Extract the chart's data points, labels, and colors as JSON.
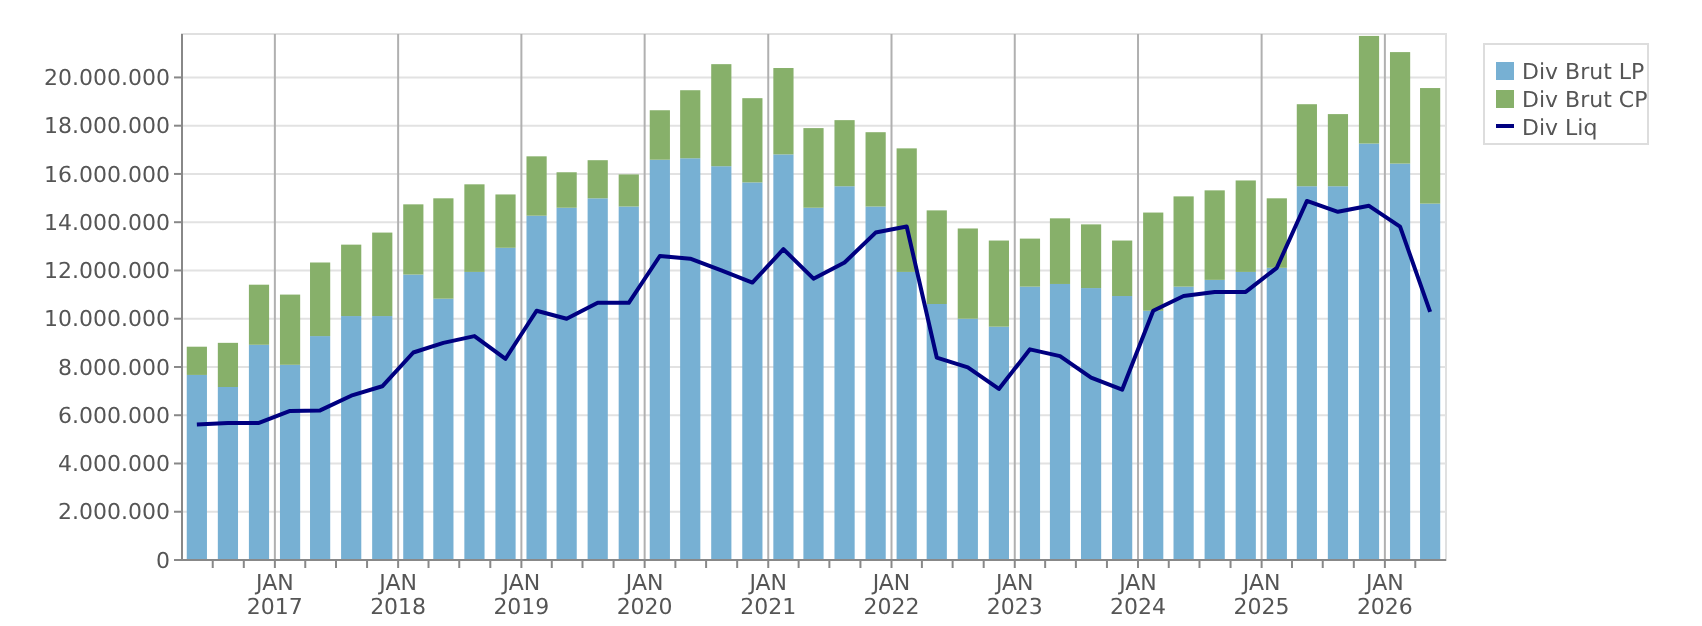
{
  "chart_data": {
    "type": "bar",
    "stacked": true,
    "x": [
      "2016-05-15",
      "2016-08-15",
      "2016-11-15",
      "2017-02-15",
      "2017-05-15",
      "2017-08-15",
      "2017-11-15",
      "2018-02-15",
      "2018-05-15",
      "2018-08-15",
      "2018-11-15",
      "2019-02-15",
      "2019-05-15",
      "2019-08-15",
      "2019-11-15",
      "2020-02-15",
      "2020-05-15",
      "2020-08-15",
      "2020-11-15",
      "2021-02-15",
      "2021-05-15",
      "2021-08-15",
      "2021-11-15",
      "2022-02-15",
      "2022-05-15",
      "2022-08-15",
      "2022-11-15",
      "2023-02-15",
      "2023-05-15",
      "2023-08-15",
      "2023-11-15",
      "2024-02-15",
      "2024-05-15",
      "2024-08-15",
      "2024-11-15",
      "2025-02-15",
      "2025-05-15",
      "2025-08-15",
      "2025-11-15",
      "2026-02-15",
      "2026-05-15"
    ],
    "series": [
      {
        "name": "Div Brut LP",
        "color": "#77b0d3",
        "values": [
          7670000,
          7170000,
          8920000,
          8090000,
          9280000,
          10110000,
          10110000,
          11830000,
          10830000,
          11940000,
          12940000,
          14270000,
          14600000,
          14990000,
          14650000,
          16590000,
          16650000,
          16320000,
          15650000,
          16810000,
          14600000,
          15490000,
          14650000,
          11940000,
          10610000,
          10000000,
          9670000,
          11330000,
          11440000,
          11270000,
          10940000,
          10330000,
          11330000,
          11610000,
          11940000,
          12110000,
          15490000,
          15490000,
          17260000,
          16430000,
          14770000
        ]
      },
      {
        "name": "Div Brut CP",
        "color": "#87b06a",
        "values": [
          1170000,
          1830000,
          2490000,
          2910000,
          3050000,
          2960000,
          3460000,
          2910000,
          4160000,
          3630000,
          2210000,
          2460000,
          1470000,
          1580000,
          1330000,
          2050000,
          2820000,
          4230000,
          3490000,
          3580000,
          3300000,
          2740000,
          3080000,
          5120000,
          3880000,
          3740000,
          3570000,
          1990000,
          2720000,
          2640000,
          2300000,
          4070000,
          3740000,
          3710000,
          3790000,
          2880000,
          3400000,
          2990000,
          4460000,
          4620000,
          4790000
        ]
      },
      {
        "name": "Div Liq",
        "type": "line",
        "color": "#000080",
        "values": [
          5620000,
          5680000,
          5680000,
          6180000,
          6200000,
          6810000,
          7200000,
          8600000,
          9000000,
          9280000,
          8340000,
          10330000,
          10000000,
          10660000,
          10660000,
          12600000,
          12490000,
          12000000,
          11500000,
          12880000,
          11660000,
          12330000,
          13570000,
          13820000,
          8390000,
          7980000,
          7090000,
          8730000,
          8450000,
          7560000,
          7060000,
          10330000,
          10940000,
          11110000,
          11110000,
          12110000,
          14880000,
          14430000,
          14680000,
          13820000,
          10280000
        ]
      }
    ],
    "xlim": [
      "2016-04-01",
      "2026-07-01"
    ],
    "xticks": [
      {
        "value": "2016-07-01",
        "label": null
      },
      {
        "value": "2016-10-01",
        "label": null
      },
      {
        "value": "2017-01-01",
        "label": "JAN 2017"
      },
      {
        "value": "2017-04-01",
        "label": null
      },
      {
        "value": "2017-07-01",
        "label": null
      },
      {
        "value": "2017-10-01",
        "label": null
      },
      {
        "value": "2018-01-01",
        "label": "JAN 2018"
      },
      {
        "value": "2018-04-01",
        "label": null
      },
      {
        "value": "2018-07-01",
        "label": null
      },
      {
        "value": "2018-10-01",
        "label": null
      },
      {
        "value": "2019-01-01",
        "label": "JAN 2019"
      },
      {
        "value": "2019-04-01",
        "label": null
      },
      {
        "value": "2019-07-01",
        "label": null
      },
      {
        "value": "2019-10-01",
        "label": null
      },
      {
        "value": "2020-01-01",
        "label": "JAN 2020"
      },
      {
        "value": "2020-04-01",
        "label": null
      },
      {
        "value": "2020-07-01",
        "label": null
      },
      {
        "value": "2020-10-01",
        "label": null
      },
      {
        "value": "2021-01-01",
        "label": "JAN 2021"
      },
      {
        "value": "2021-04-01",
        "label": null
      },
      {
        "value": "2021-07-01",
        "label": null
      },
      {
        "value": "2021-10-01",
        "label": null
      },
      {
        "value": "2022-01-01",
        "label": "JAN 2022"
      },
      {
        "value": "2022-04-01",
        "label": null
      },
      {
        "value": "2022-07-01",
        "label": null
      },
      {
        "value": "2022-10-01",
        "label": null
      },
      {
        "value": "2023-01-01",
        "label": "JAN 2023"
      },
      {
        "value": "2023-04-01",
        "label": null
      },
      {
        "value": "2023-07-01",
        "label": null
      },
      {
        "value": "2023-10-01",
        "label": null
      },
      {
        "value": "2024-01-01",
        "label": "JAN 2024"
      },
      {
        "value": "2024-04-01",
        "label": null
      },
      {
        "value": "2024-07-01",
        "label": null
      },
      {
        "value": "2024-10-01",
        "label": null
      },
      {
        "value": "2025-01-01",
        "label": "JAN 2025"
      },
      {
        "value": "2025-04-01",
        "label": null
      },
      {
        "value": "2025-07-01",
        "label": null
      },
      {
        "value": "2025-10-01",
        "label": null
      },
      {
        "value": "2026-01-01",
        "label": "JAN 2026"
      },
      {
        "value": "2026-04-01",
        "label": null
      }
    ],
    "ylim": [
      0,
      21800000
    ],
    "yticks": [
      0,
      {
        "value": 2000000,
        "label": "2.000.000"
      },
      {
        "value": 4000000,
        "label": "4.000.000"
      },
      {
        "value": 6000000,
        "label": "6.000.000"
      },
      {
        "value": 8000000,
        "label": "8.000.000"
      },
      {
        "value": 10000000,
        "label": "10.000.000"
      },
      {
        "value": 12000000,
        "label": "12.000.000"
      },
      {
        "value": 14000000,
        "label": "14.000.000"
      },
      {
        "value": 16000000,
        "label": "16.000.000"
      },
      {
        "value": 18000000,
        "label": "18.000.000"
      },
      {
        "value": 20000000,
        "label": "20.000.000"
      }
    ],
    "grid": true,
    "legend": "top right",
    "marker": "none",
    "line_style": "solid"
  }
}
